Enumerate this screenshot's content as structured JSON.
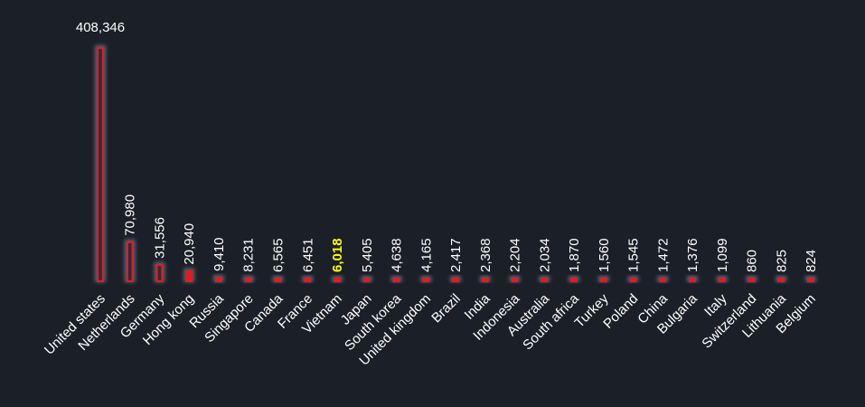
{
  "chart_data": {
    "type": "bar",
    "title": "",
    "xlabel": "",
    "ylabel": "",
    "ylim": [
      0,
      408346
    ],
    "grid": false,
    "legend": "none",
    "categories": [
      "United states",
      "Netherlands",
      "Germany",
      "Hong kong",
      "Russia",
      "Singapore",
      "Canada",
      "France",
      "Vietnam",
      "Japan",
      "South korea",
      "United kingdom",
      "Brazil",
      "India",
      "Indonesia",
      "Australia",
      "South africa",
      "Turkey",
      "Poland",
      "China",
      "Bulgaria",
      "Italy",
      "Switzerland",
      "Lithuania",
      "Belgium"
    ],
    "values": [
      408346,
      70980,
      31556,
      20940,
      9410,
      8231,
      6565,
      6451,
      6018,
      5405,
      4638,
      4165,
      2417,
      2368,
      2204,
      2034,
      1870,
      1560,
      1545,
      1472,
      1376,
      1099,
      860,
      825,
      824
    ],
    "value_labels": [
      "408,346",
      "70,980",
      "31,556",
      "20,940",
      "9,410",
      "8,231",
      "6,565",
      "6,451",
      "6,018",
      "5,405",
      "4,638",
      "4,165",
      "2,417",
      "2,368",
      "2,204",
      "2,034",
      "1,870",
      "1,560",
      "1,545",
      "1,472",
      "1,376",
      "1,099",
      "860",
      "825",
      "824"
    ],
    "highlight_category": "Vietnam",
    "colors": {
      "background": "#1b1f27",
      "bar_fill": "#e01b24",
      "bar_outline": "#5a6474",
      "label": "#ffffff",
      "highlight_label": "#ffff00"
    }
  }
}
